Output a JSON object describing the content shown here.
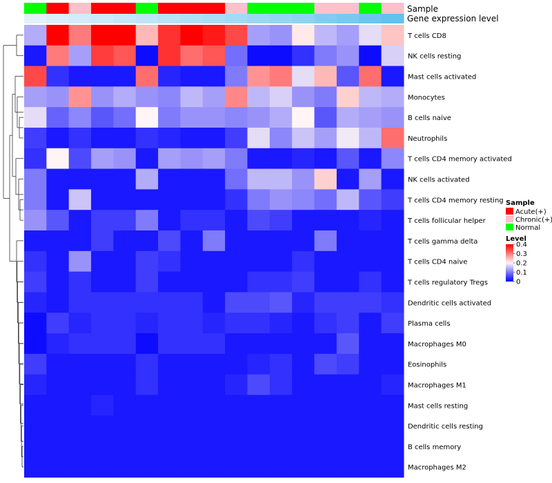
{
  "chart_data": {
    "type": "heatmap",
    "title": "",
    "annotation_tracks": [
      "Sample",
      "Gene expression level"
    ],
    "rows": [
      "T cells CD8",
      "NK cells resting",
      "Mast cells activated",
      "Monocytes",
      "B cells naive",
      "Neutrophils",
      "T cells CD4 memory activated",
      "NK cells activated",
      "T cells CD4 memory resting",
      "T cells follicular helper",
      "T cells gamma delta",
      "T cells CD4 naive",
      "T cells regulatory  Tregs",
      "Dendritic cells activated",
      "Plasma cells",
      "Macrophages M0",
      "Eosinophils",
      "Macrophages M1",
      "Mast cells resting",
      "Dendritic cells resting",
      "B cells memory",
      "Macrophages M2"
    ],
    "column_sample": [
      "Normal",
      "Acute(+)",
      "Chronic(+)",
      "Acute(+)",
      "Acute(+)",
      "Normal",
      "Acute(+)",
      "Acute(+)",
      "Acute(+)",
      "Chronic(+)",
      "Normal",
      "Normal",
      "Normal",
      "Chronic(+)",
      "Chronic(+)",
      "Normal",
      "Chronic(+)"
    ],
    "column_gene_expression": [
      0.05,
      0.1,
      0.15,
      0.2,
      0.25,
      0.3,
      0.35,
      0.4,
      0.45,
      0.5,
      0.55,
      0.6,
      0.65,
      0.75,
      0.82,
      0.9,
      0.98
    ],
    "values": [
      [
        0.14,
        0.4,
        0.3,
        0.4,
        0.4,
        0.25,
        0.36,
        0.4,
        0.38,
        0.34,
        0.13,
        0.12,
        0.21,
        0.15,
        0.13,
        0.18,
        0.24
      ],
      [
        0.02,
        0.3,
        0.13,
        0.35,
        0.33,
        0.01,
        0.36,
        0.31,
        0.33,
        0.09,
        0.01,
        0.01,
        0.04,
        0.1,
        0.12,
        0.01,
        0.17
      ],
      [
        0.34,
        0.04,
        0.02,
        0.02,
        0.02,
        0.31,
        0.03,
        0.02,
        0.02,
        0.1,
        0.28,
        0.3,
        0.18,
        0.25,
        0.07,
        0.31,
        0.02
      ],
      [
        0.13,
        0.12,
        0.28,
        0.12,
        0.14,
        0.12,
        0.11,
        0.15,
        0.13,
        0.29,
        0.15,
        0.17,
        0.12,
        0.1,
        0.23,
        0.15,
        0.14
      ],
      [
        0.18,
        0.08,
        0.11,
        0.07,
        0.09,
        0.2,
        0.1,
        0.12,
        0.12,
        0.11,
        0.12,
        0.14,
        0.2,
        0.07,
        0.14,
        0.13,
        0.12
      ],
      [
        0.05,
        0.02,
        0.04,
        0.02,
        0.02,
        0.04,
        0.03,
        0.02,
        0.02,
        0.05,
        0.18,
        0.11,
        0.16,
        0.13,
        0.19,
        0.15,
        0.31
      ],
      [
        0.04,
        0.2,
        0.06,
        0.13,
        0.12,
        0.02,
        0.13,
        0.12,
        0.13,
        0.1,
        0.02,
        0.02,
        0.03,
        0.02,
        0.07,
        0.02,
        0.11
      ],
      [
        0.1,
        0.02,
        0.02,
        0.02,
        0.02,
        0.14,
        0.02,
        0.02,
        0.02,
        0.09,
        0.15,
        0.15,
        0.12,
        0.23,
        0.02,
        0.13,
        0.02
      ],
      [
        0.1,
        0.02,
        0.16,
        0.02,
        0.02,
        0.02,
        0.02,
        0.02,
        0.02,
        0.04,
        0.1,
        0.12,
        0.11,
        0.09,
        0.15,
        0.07,
        0.05
      ],
      [
        0.12,
        0.07,
        0.02,
        0.05,
        0.05,
        0.1,
        0.02,
        0.04,
        0.04,
        0.02,
        0.06,
        0.05,
        0.02,
        0.02,
        0.02,
        0.03,
        0.02
      ],
      [
        0.02,
        0.02,
        0.02,
        0.05,
        0.02,
        0.02,
        0.06,
        0.02,
        0.1,
        0.02,
        0.02,
        0.02,
        0.02,
        0.1,
        0.02,
        0.02,
        0.02
      ],
      [
        0.04,
        0.02,
        0.12,
        0.02,
        0.02,
        0.05,
        0.04,
        0.02,
        0.02,
        0.02,
        0.02,
        0.02,
        0.04,
        0.02,
        0.02,
        0.02,
        0.02
      ],
      [
        0.05,
        0.02,
        0.04,
        0.02,
        0.02,
        0.05,
        0.02,
        0.02,
        0.02,
        0.02,
        0.04,
        0.04,
        0.05,
        0.02,
        0.02,
        0.04,
        0.02
      ],
      [
        0.03,
        0.02,
        0.04,
        0.04,
        0.04,
        0.04,
        0.04,
        0.04,
        0.02,
        0.06,
        0.06,
        0.07,
        0.03,
        0.05,
        0.05,
        0.05,
        0.04
      ],
      [
        0.01,
        0.05,
        0.03,
        0.04,
        0.04,
        0.03,
        0.04,
        0.04,
        0.03,
        0.04,
        0.04,
        0.03,
        0.02,
        0.04,
        0.05,
        0.02,
        0.05
      ],
      [
        0.01,
        0.03,
        0.04,
        0.04,
        0.04,
        0.01,
        0.04,
        0.04,
        0.04,
        0.02,
        0.02,
        0.02,
        0.02,
        0.02,
        0.07,
        0.02,
        0.02
      ],
      [
        0.05,
        0.02,
        0.02,
        0.02,
        0.02,
        0.04,
        0.02,
        0.02,
        0.02,
        0.02,
        0.03,
        0.04,
        0.02,
        0.06,
        0.05,
        0.02,
        0.02
      ],
      [
        0.03,
        0.02,
        0.02,
        0.02,
        0.02,
        0.04,
        0.02,
        0.02,
        0.02,
        0.03,
        0.06,
        0.04,
        0.02,
        0.02,
        0.02,
        0.02,
        0.03
      ],
      [
        0.02,
        0.02,
        0.02,
        0.03,
        0.02,
        0.02,
        0.02,
        0.02,
        0.02,
        0.02,
        0.02,
        0.02,
        0.02,
        0.02,
        0.02,
        0.02,
        0.02
      ],
      [
        0.02,
        0.02,
        0.02,
        0.02,
        0.02,
        0.02,
        0.02,
        0.02,
        0.02,
        0.02,
        0.02,
        0.02,
        0.02,
        0.02,
        0.02,
        0.02,
        0.02
      ],
      [
        0.02,
        0.02,
        0.02,
        0.02,
        0.02,
        0.02,
        0.02,
        0.02,
        0.02,
        0.02,
        0.02,
        0.02,
        0.02,
        0.02,
        0.02,
        0.02,
        0.02
      ],
      [
        0.02,
        0.02,
        0.02,
        0.02,
        0.02,
        0.02,
        0.02,
        0.02,
        0.02,
        0.02,
        0.02,
        0.02,
        0.02,
        0.02,
        0.02,
        0.02,
        0.02
      ]
    ],
    "color_scale": {
      "min": 0,
      "mid": 0.2,
      "max": 0.4,
      "low_color": "#0000ff",
      "mid_color": "#fff5f5",
      "high_color": "#ff0000"
    },
    "gene_expression_colors": {
      "low": "#e8f4fb",
      "high": "#5ec0ef"
    },
    "dendrogram": {
      "merges": [
        [
          "T cells CD8",
          "NK cells resting"
        ],
        [
          "Mast cells activated",
          "Monocytes",
          "B cells naive",
          "Neutrophils"
        ],
        [
          "T cells CD4 memory activated",
          "NK cells activated",
          "T cells CD4 memory resting",
          "T cells follicular helper"
        ],
        [
          "T cells gamma delta",
          "T cells CD4 naive",
          "T cells regulatory  Tregs",
          "Dendritic cells activated",
          "Plasma cells",
          "Macrophages M0",
          "Eosinophils",
          "Macrophages M1",
          "Mast cells resting",
          "Dendritic cells resting",
          "B cells memory",
          "Macrophages M2"
        ]
      ]
    },
    "legend": {
      "sample_title": "Sample",
      "sample_items": [
        {
          "label": "Acute(+)",
          "color": "#ff0000"
        },
        {
          "label": "Chronic(+)",
          "color": "#ffc0cb"
        },
        {
          "label": "Normal",
          "color": "#00ff00"
        }
      ],
      "level_title": "Level",
      "level_ticks": [
        "0.4",
        "0.3",
        "0.2",
        "0.1",
        "0"
      ],
      "level_tick_values": [
        0.4,
        0.3,
        0.2,
        0.1,
        0
      ]
    },
    "placement": "legend-right"
  }
}
